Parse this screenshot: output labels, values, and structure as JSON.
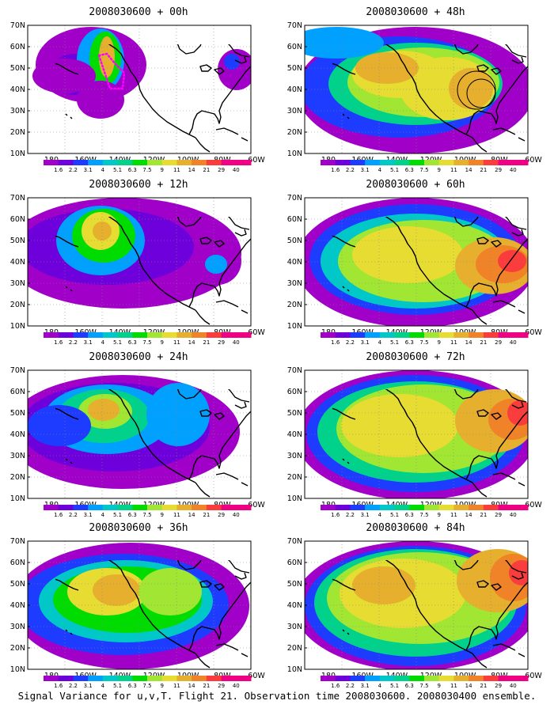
{
  "footer": "Signal Variance for u,v,T. Flight 21. Observation time 2008030600. 2008030400 ensemble.",
  "axes": {
    "lat_labels": [
      "70N",
      "60N",
      "50N",
      "40N",
      "30N",
      "20N",
      "10N"
    ],
    "lon_labels": [
      "180",
      "160W",
      "140W",
      "120W",
      "100W",
      "80W",
      "60W"
    ]
  },
  "colorbar": {
    "labels": [
      "1.6",
      "2.2",
      "3.1",
      "4",
      "5.1",
      "6.3",
      "7.5",
      "9",
      "11",
      "14",
      "21",
      "29",
      "40"
    ],
    "colors": [
      "#a000c8",
      "#6e00dc",
      "#1e3cff",
      "#00a0ff",
      "#00c8c8",
      "#00d28c",
      "#00dc00",
      "#a0e632",
      "#e6dc32",
      "#e6af2d",
      "#f08228",
      "#fa3c3c",
      "#f00082"
    ]
  },
  "panels": [
    {
      "title": "2008030600 + 00h"
    },
    {
      "title": "2008030600 + 48h"
    },
    {
      "title": "2008030600 + 12h"
    },
    {
      "title": "2008030600 + 60h"
    },
    {
      "title": "2008030600 + 24h"
    },
    {
      "title": "2008030600 + 72h"
    },
    {
      "title": "2008030600 + 36h"
    },
    {
      "title": "2008030600 + 84h"
    }
  ]
}
